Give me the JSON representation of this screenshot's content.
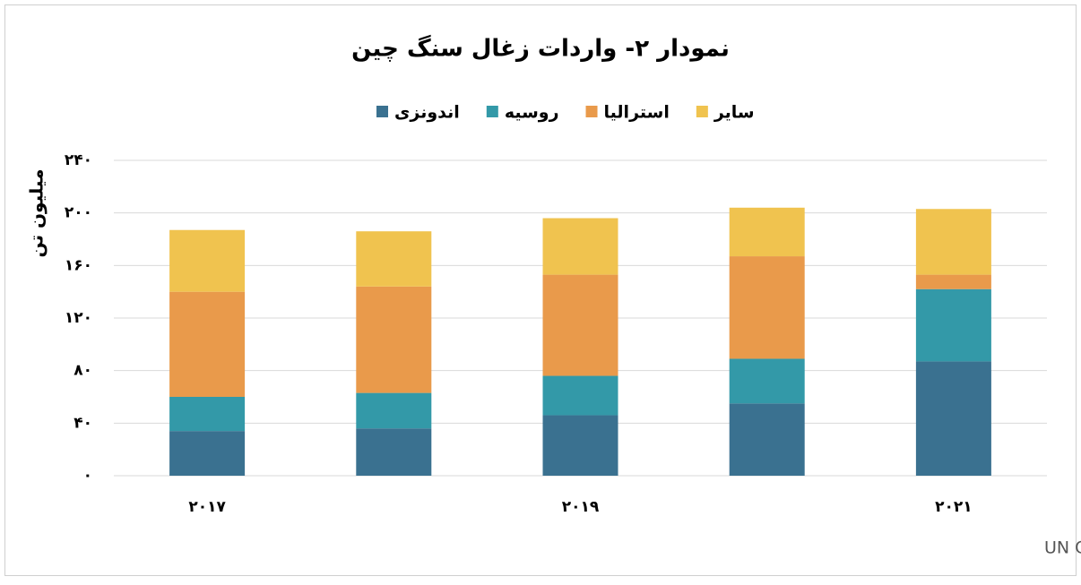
{
  "chart_data": {
    "type": "stacked_bar",
    "title": "نمودار ۲- واردات زغال سنگ چین",
    "y_label": "میلیون تن",
    "source": "منبع: UN Comtrade",
    "categories": [
      "۲۰۱۷",
      null,
      "۲۰۱۹",
      null,
      "۲۰۲۱"
    ],
    "series": [
      {
        "name": "اندونزی",
        "color": "#3a7190",
        "values": [
          34,
          36,
          46,
          55,
          87
        ]
      },
      {
        "name": "روسیه",
        "color": "#3399a8",
        "values": [
          26,
          27,
          30,
          34,
          55
        ]
      },
      {
        "name": "استرالیا",
        "color": "#e99a4b",
        "values": [
          80,
          81,
          77,
          78,
          11
        ]
      },
      {
        "name": "سایر",
        "color": "#f0c34f",
        "values": [
          47,
          42,
          43,
          37,
          50
        ]
      }
    ],
    "ylim": [
      0,
      240
    ],
    "yticks": [
      {
        "value": 0,
        "label": "۰"
      },
      {
        "value": 40,
        "label": "۴۰"
      },
      {
        "value": 80,
        "label": "۸۰"
      },
      {
        "value": 120,
        "label": "۱۲۰"
      },
      {
        "value": 160,
        "label": "۱۶۰"
      },
      {
        "value": 200,
        "label": "۲۰۰"
      },
      {
        "value": 240,
        "label": "۲۴۰"
      }
    ],
    "grid": true
  }
}
